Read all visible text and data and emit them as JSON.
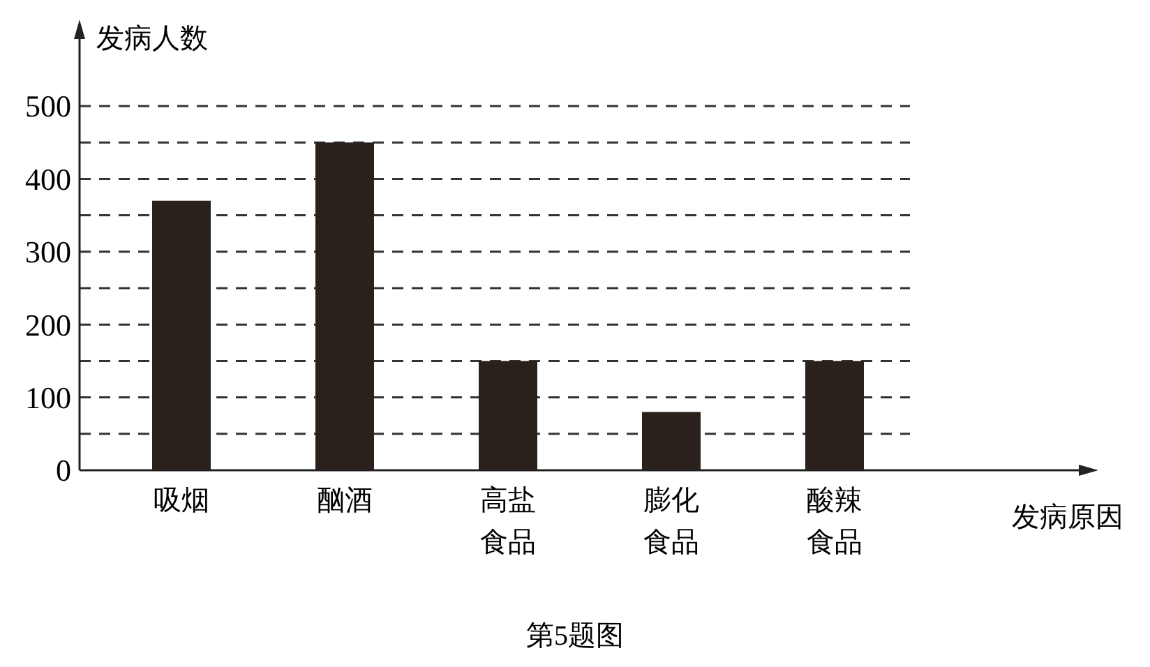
{
  "chart_data": {
    "type": "bar",
    "title": "第5题图",
    "ylabel": "发病人数",
    "xlabel": "发病原因",
    "categories": [
      "吸烟",
      "酗酒",
      "高盐食品",
      "膨化食品",
      "酸辣食品"
    ],
    "values": [
      370,
      450,
      150,
      80,
      150
    ],
    "color": "#2a201c",
    "ylim": [
      0,
      500
    ],
    "yticks": [
      0,
      {
        "value": 50,
        "label": null
      },
      100,
      {
        "value": 150,
        "label": null
      },
      200,
      {
        "value": 250,
        "label": null
      },
      300,
      {
        "value": 350,
        "label": null
      },
      400,
      {
        "value": 450,
        "label": null
      },
      500
    ],
    "grid": "y",
    "line_style": "dashed"
  }
}
